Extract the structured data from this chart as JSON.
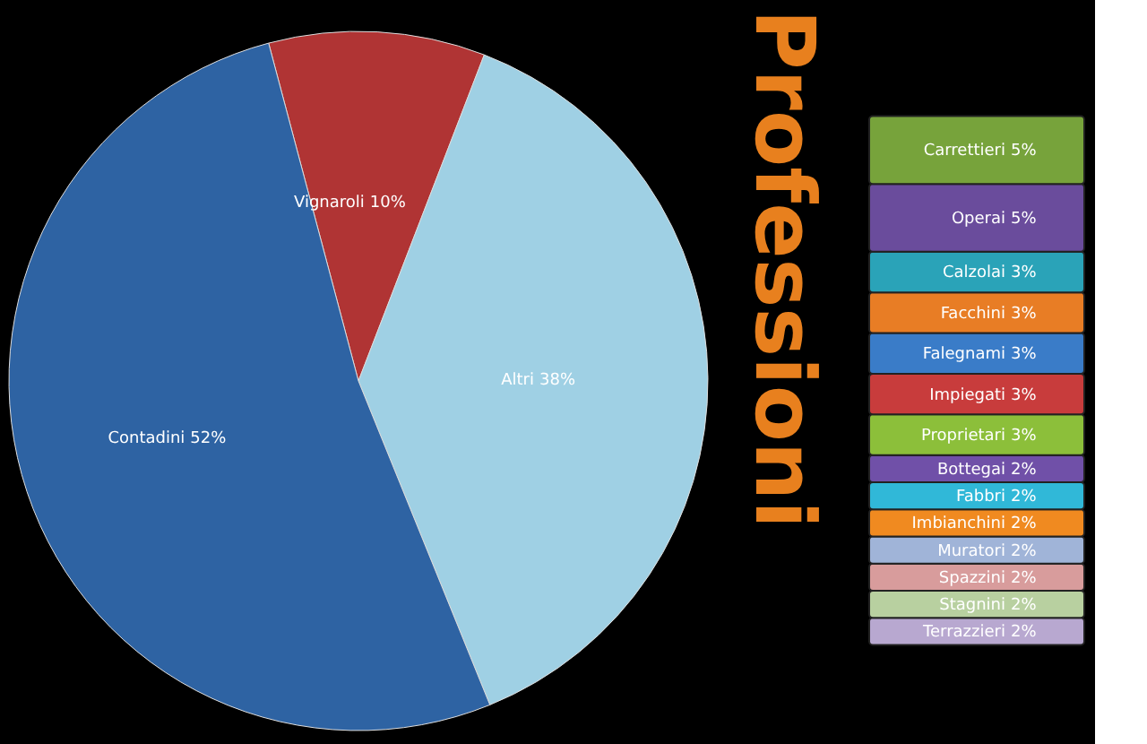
{
  "chart_data": [
    {
      "type": "pie",
      "title": "Professioni",
      "categories": [
        "Vignaroli",
        "Altri",
        "Contadini"
      ],
      "values": [
        10,
        38,
        52
      ],
      "colors": [
        "#b03434",
        "#9fd0e4",
        "#2e63a3"
      ],
      "value_labels": [
        "10%",
        "38%",
        "52%"
      ]
    },
    {
      "type": "bar",
      "stacked": true,
      "categories": [
        null
      ],
      "series": [
        {
          "name": "Terrazzieri",
          "color": "#b8a8d0",
          "values": [
            2
          ],
          "value_labels": [
            "2%"
          ]
        },
        {
          "name": "Stagnini",
          "color": "#b8d0a0",
          "values": [
            2
          ],
          "value_labels": [
            "2%"
          ]
        },
        {
          "name": "Spazzini",
          "color": "#d89c9c",
          "values": [
            2
          ],
          "value_labels": [
            "2%"
          ]
        },
        {
          "name": "Muratori",
          "color": "#a0b4d8",
          "values": [
            2
          ],
          "value_labels": [
            "2%"
          ]
        },
        {
          "name": "Imbianchini",
          "color": "#f08a20",
          "values": [
            2
          ],
          "value_labels": [
            "2%"
          ]
        },
        {
          "name": "Fabbri",
          "color": "#30b8d8",
          "values": [
            2
          ],
          "value_labels": [
            "2%"
          ]
        },
        {
          "name": "Bottegai",
          "color": "#7050a8",
          "values": [
            2
          ],
          "value_labels": [
            "2%"
          ]
        },
        {
          "name": "Proprietari",
          "color": "#8cbf3a",
          "values": [
            3
          ],
          "value_labels": [
            "3%"
          ]
        },
        {
          "name": "Impiegati",
          "color": "#c83c3c",
          "values": [
            3
          ],
          "value_labels": [
            "3%"
          ]
        },
        {
          "name": "Falegnami",
          "color": "#3a7cc8",
          "values": [
            3
          ],
          "value_labels": [
            "3%"
          ]
        },
        {
          "name": "Facchini",
          "color": "#e87d25",
          "values": [
            3
          ],
          "value_labels": [
            "3%"
          ]
        },
        {
          "name": "Calzolai",
          "color": "#2aa3b8",
          "values": [
            3
          ],
          "value_labels": [
            "3%"
          ]
        },
        {
          "name": "Operai",
          "color": "#6a4c9c",
          "values": [
            5
          ],
          "value_labels": [
            "5%"
          ]
        },
        {
          "name": "Carrettieri",
          "color": "#77a33b",
          "values": [
            5
          ],
          "value_labels": [
            "5%"
          ]
        }
      ]
    }
  ]
}
